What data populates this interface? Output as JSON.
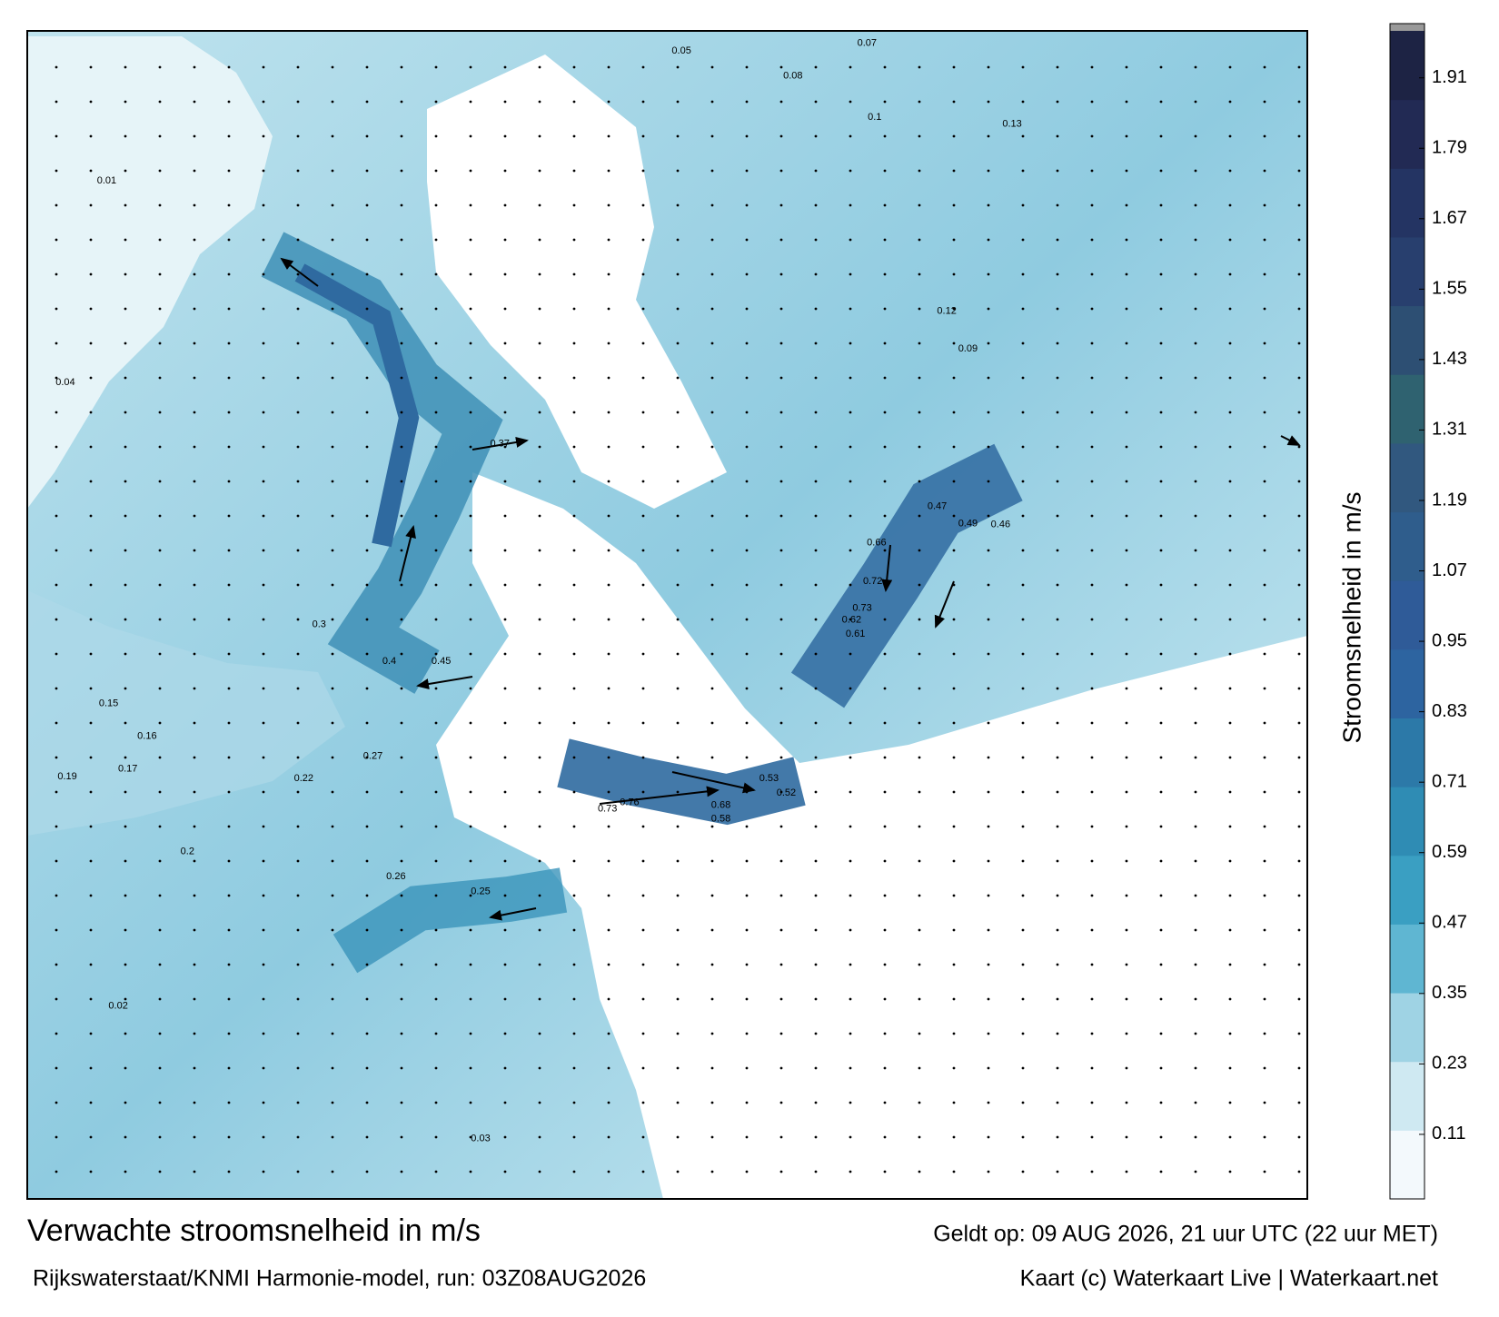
{
  "map": {
    "title": "Verwachte stroomsnelheid in m/s",
    "subtitle": "Rijkswaterstaat/KNMI Harmonie-model, run: 03Z08AUG2026",
    "valid": "Geldt op: 09 AUG 2026, 21 uur UTC (22 uur MET)",
    "credit": "Kaart (c) Waterkaart Live | Waterkaart.net",
    "current_labels": [
      0.76,
      0.73,
      0.68,
      0.72,
      0.73,
      0.66,
      0.62,
      0.61,
      0.58,
      0.53,
      0.52,
      0.49,
      0.47,
      0.46,
      0.45,
      0.4,
      0.37,
      0.3,
      0.27,
      0.26,
      0.25,
      0.22,
      0.2,
      0.19,
      0.17,
      0.16,
      0.15,
      0.13,
      0.12,
      0.1,
      0.09,
      0.08,
      0.07,
      0.05,
      0.04,
      0.03,
      0.02,
      0.01
    ]
  },
  "colorbar": {
    "label": "Stroomsnelheid in m/s",
    "ylim": [
      0,
      1.99
    ],
    "yticks": [
      0.11,
      0.23,
      0.35,
      0.47,
      0.59,
      0.71,
      0.83,
      0.95,
      1.07,
      1.19,
      1.31,
      1.43,
      1.55,
      1.67,
      1.79,
      1.91
    ],
    "colors": [
      "#f3f9fc",
      "#cfe9f2",
      "#9fd3e4",
      "#5fb6d2",
      "#3a9fc2",
      "#2f8cb4",
      "#2c79a8",
      "#2d64a0",
      "#2f5b98",
      "#2f5d8c",
      "#31587f",
      "#2f6270",
      "#2d4f73",
      "#283f6e",
      "#243463",
      "#222a54",
      "#1d2344"
    ]
  }
}
